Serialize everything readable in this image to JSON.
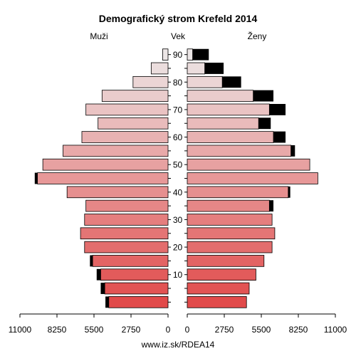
{
  "chart_data": {
    "type": "bar",
    "subtype": "population-pyramid",
    "title": "Demografický strom Krefeld 2014",
    "left_label": "Muži",
    "center_label": "Vek",
    "right_label": "Ženy",
    "footer": "www.iz.sk/RDEA14",
    "xlim": [
      0,
      11000
    ],
    "x_ticks_left": [
      "11000",
      "8250",
      "5500",
      "2750",
      "0"
    ],
    "x_ticks_right": [
      "0",
      "2750",
      "5500",
      "8250",
      "11000"
    ],
    "age_groups": [
      "0-4",
      "5-9",
      "10-14",
      "15-19",
      "20-24",
      "25-29",
      "30-34",
      "35-39",
      "40-44",
      "45-49",
      "50-54",
      "55-59",
      "60-64",
      "65-69",
      "70-74",
      "75-79",
      "80-84",
      "85-89",
      "90+"
    ],
    "age_tick_labels": [
      "10",
      "20",
      "30",
      "40",
      "50",
      "60",
      "70",
      "80",
      "90"
    ],
    "series": [
      {
        "name": "Muži",
        "values": [
          4400,
          4700,
          5000,
          5600,
          6200,
          6500,
          6200,
          6100,
          7500,
          9700,
          9300,
          7800,
          6400,
          5200,
          6100,
          4900,
          2600,
          1250,
          400
        ],
        "excess": [
          250,
          300,
          300,
          200,
          0,
          0,
          0,
          0,
          0,
          200,
          0,
          0,
          0,
          0,
          0,
          0,
          0,
          0,
          0
        ]
      },
      {
        "name": "Ženy",
        "values": [
          4400,
          4600,
          5100,
          5700,
          6300,
          6500,
          6300,
          6100,
          7500,
          9700,
          9100,
          7700,
          6400,
          5300,
          6100,
          4900,
          2600,
          1300,
          400
        ],
        "excess": [
          0,
          0,
          0,
          0,
          0,
          0,
          0,
          300,
          150,
          0,
          0,
          300,
          900,
          900,
          1200,
          1500,
          1400,
          1400,
          1200
        ]
      }
    ],
    "colors": {
      "excess": "#000000",
      "bar_outline": "#000000",
      "youngest": "#e14a4a",
      "oldest": "#ece6e6"
    }
  }
}
